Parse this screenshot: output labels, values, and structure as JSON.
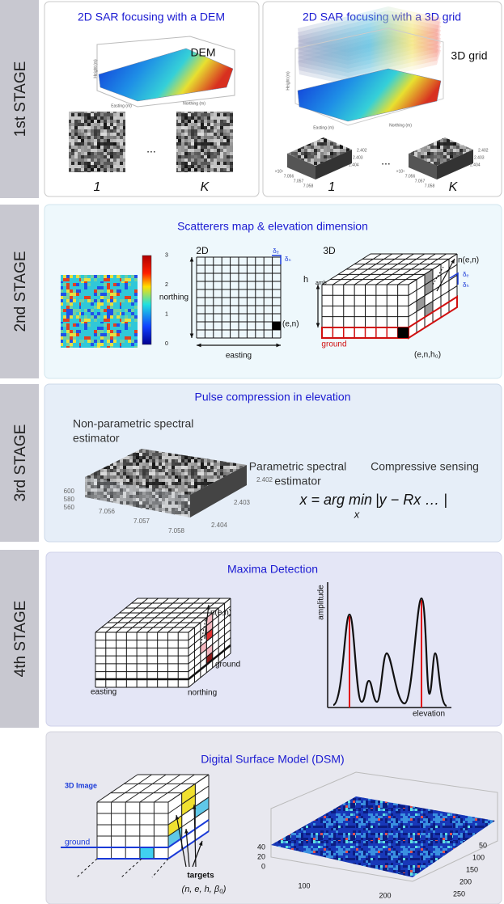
{
  "stage1": {
    "label": "1st STAGE",
    "left": {
      "title": "2D SAR focusing with a DEM",
      "tag": "DEM",
      "axes": [
        "Height (m)",
        "Easting (m)",
        "Northing (m)"
      ],
      "first": "1",
      "dots": "...",
      "last": "K"
    },
    "right": {
      "title": "2D SAR focusing with a 3D grid",
      "tag": "3D grid",
      "axes": [
        "Height (m)",
        "Easting (m)",
        "Northing (m)"
      ],
      "first": "1",
      "dots": "...",
      "last": "K",
      "xticks": [
        7.056,
        7.057,
        7.058
      ],
      "yticks": [
        2.402,
        2.403,
        2.404
      ],
      "exponent": "×10⁵"
    }
  },
  "stage2": {
    "label": "2nd STAGE",
    "title": "Scatterers map & elevation dimension",
    "colorbar": [
      0,
      1,
      2,
      3
    ],
    "grid2d": {
      "label": "2D",
      "y": "northing",
      "x": "easting",
      "cell": "(e,n)",
      "de": "δₑ",
      "dn": "δₙ"
    },
    "grid3d": {
      "label": "3D",
      "normal": "n(e,n)",
      "h": "h",
      "hsub": "amb",
      "ground": "ground",
      "cell": "(e,n,h₀)",
      "de": "δₑ",
      "dh": "δₕ"
    }
  },
  "stage3": {
    "label": "3rd STAGE",
    "title": "Pulse compression in elevation",
    "nonparametric": [
      "Non-parametric spectral",
      "estimator"
    ],
    "parametric": [
      "Parametric spectral",
      "estimator"
    ],
    "compressive": "Compressive sensing",
    "formula": {
      "lhs": "x = arg min",
      "under": "x",
      "rhs": "|y − Rx … |"
    },
    "zticks": [
      600,
      580,
      560
    ],
    "xticks": [
      7.056,
      7.057,
      7.058
    ],
    "yticks": [
      2.402,
      2.403,
      2.404
    ]
  },
  "stage4": {
    "label": "4th STAGE",
    "title": "Maxima Detection",
    "normal": "n(e,n)",
    "ground": "ground",
    "easting": "easting",
    "northing": "northing",
    "ylabel": "amplitude",
    "xlabel": "elevation"
  },
  "dsm": {
    "title": "Digital Surface Model (DSM)",
    "image": "3D Image",
    "ground": "ground",
    "targets": "targets",
    "tuple": "(n, e, h, β₀)",
    "zticks": [
      40,
      20,
      0
    ],
    "xticks": [
      100,
      200
    ],
    "yticks": [
      50,
      100,
      150,
      200,
      250
    ]
  }
}
